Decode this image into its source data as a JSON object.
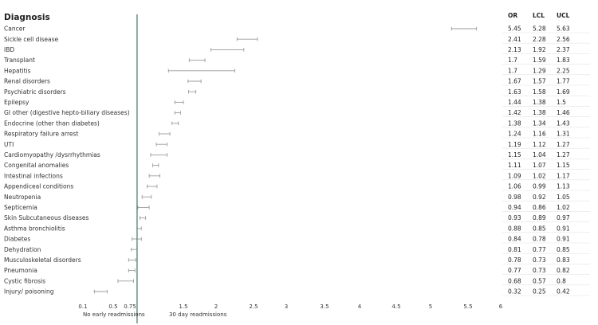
{
  "chart_data": {
    "type": "forest",
    "title": "Diagnosis",
    "columns": [
      "OR",
      "LCL",
      "UCL"
    ],
    "reference_line": 0.85,
    "x_ticks": [
      "0.1",
      "0.5",
      "0.75",
      "1.5",
      "2",
      "2.5",
      "3",
      "3.5",
      "4",
      "4.5",
      "5",
      "5.5",
      "6"
    ],
    "left_note": "No early readmissions",
    "right_note": "30 day readmissions",
    "rows": [
      {
        "label": "Cancer",
        "or": 5.45,
        "lcl": 5.28,
        "ucl": 5.63
      },
      {
        "label": "Sickle cell disease",
        "or": 2.41,
        "lcl": 2.28,
        "ucl": 2.56
      },
      {
        "label": "IBD",
        "or": 2.13,
        "lcl": 1.92,
        "ucl": 2.37
      },
      {
        "label": "Transplant",
        "or": 1.7,
        "lcl": 1.59,
        "ucl": 1.83
      },
      {
        "label": "Hepatitis",
        "or": 1.7,
        "lcl": 1.29,
        "ucl": 2.25
      },
      {
        "label": "Renal disorders",
        "or": 1.67,
        "lcl": 1.57,
        "ucl": 1.77
      },
      {
        "label": "Psychiatric disorders",
        "or": 1.63,
        "lcl": 1.58,
        "ucl": 1.69
      },
      {
        "label": "Epilepsy",
        "or": 1.44,
        "lcl": 1.38,
        "ucl": 1.5
      },
      {
        "label": "GI other (digestive hepto-biliary diseases)",
        "or": 1.42,
        "lcl": 1.38,
        "ucl": 1.46
      },
      {
        "label": "Endocrine (other than diabetes)",
        "or": 1.38,
        "lcl": 1.34,
        "ucl": 1.43
      },
      {
        "label": "Respiratory failure arrest",
        "or": 1.24,
        "lcl": 1.16,
        "ucl": 1.31
      },
      {
        "label": "UTI",
        "or": 1.19,
        "lcl": 1.12,
        "ucl": 1.27
      },
      {
        "label": "Cardiomyopathy /dysrrhythmias",
        "or": 1.15,
        "lcl": 1.04,
        "ucl": 1.27
      },
      {
        "label": "Congenital anomalies",
        "or": 1.11,
        "lcl": 1.07,
        "ucl": 1.15
      },
      {
        "label": "Intestinal infections",
        "or": 1.09,
        "lcl": 1.02,
        "ucl": 1.17
      },
      {
        "label": "Appendiceal conditions",
        "or": 1.06,
        "lcl": 0.99,
        "ucl": 1.13
      },
      {
        "label": "Neutropenia",
        "or": 0.98,
        "lcl": 0.92,
        "ucl": 1.05
      },
      {
        "label": "Septicemia",
        "or": 0.94,
        "lcl": 0.86,
        "ucl": 1.02
      },
      {
        "label": "Skin Subcutaneous diseases",
        "or": 0.93,
        "lcl": 0.89,
        "ucl": 0.97
      },
      {
        "label": "Asthma bronchiolitis",
        "or": 0.88,
        "lcl": 0.85,
        "ucl": 0.91
      },
      {
        "label": "Diabetes",
        "or": 0.84,
        "lcl": 0.78,
        "ucl": 0.91
      },
      {
        "label": "Dehydration",
        "or": 0.81,
        "lcl": 0.77,
        "ucl": 0.85
      },
      {
        "label": "Musculoskeletal disorders",
        "or": 0.78,
        "lcl": 0.73,
        "ucl": 0.83
      },
      {
        "label": "Pneumonia",
        "or": 0.77,
        "lcl": 0.73,
        "ucl": 0.82
      },
      {
        "label": "Cystic fibrosis",
        "or": 0.68,
        "lcl": 0.57,
        "ucl": 0.8
      },
      {
        "label": "Injury/ poisoning",
        "or": 0.32,
        "lcl": 0.25,
        "ucl": 0.42
      }
    ]
  }
}
